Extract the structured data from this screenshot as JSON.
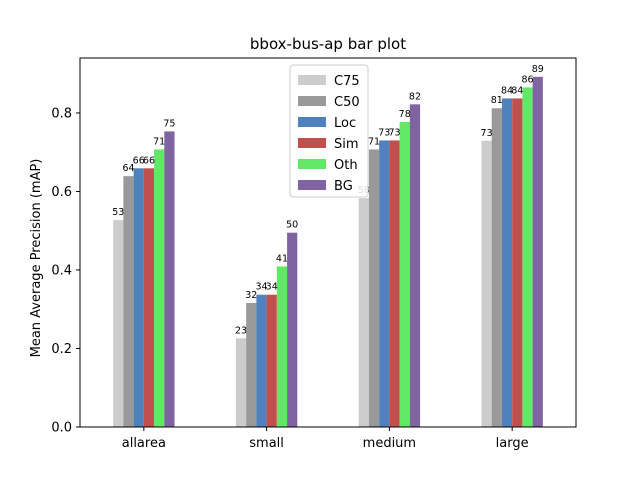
{
  "chart_data": {
    "type": "bar",
    "title": "bbox-bus-ap bar plot",
    "xlabel": "",
    "ylabel": "Mean Average Precision (mAP)",
    "ylim": [
      0,
      0.94
    ],
    "yticks": [
      0.0,
      0.2,
      0.4,
      0.6,
      0.8
    ],
    "ytick_labels": [
      "0.0",
      "0.2",
      "0.4",
      "0.6",
      "0.8"
    ],
    "categories": [
      "allarea",
      "small",
      "medium",
      "large"
    ],
    "legend_position": "top-center",
    "grid": false,
    "series": [
      {
        "name": "C75",
        "color": "#cccccc",
        "values": [
          0.527,
          0.226,
          0.583,
          0.729
        ],
        "labels": [
          "53",
          "23",
          "58",
          "73"
        ]
      },
      {
        "name": "C50",
        "color": "#999999",
        "values": [
          0.639,
          0.316,
          0.707,
          0.812
        ],
        "labels": [
          "64",
          "32",
          "71",
          "81"
        ]
      },
      {
        "name": "Loc",
        "color": "#4f81bd",
        "values": [
          0.659,
          0.337,
          0.73,
          0.837
        ],
        "labels": [
          "66",
          "34",
          "73",
          "84"
        ]
      },
      {
        "name": "Sim",
        "color": "#c0504d",
        "values": [
          0.659,
          0.337,
          0.73,
          0.837
        ],
        "labels": [
          "66",
          "34",
          "73",
          "84"
        ]
      },
      {
        "name": "Oth",
        "color": "#62e867",
        "values": [
          0.707,
          0.409,
          0.777,
          0.865
        ],
        "labels": [
          "71",
          "41",
          "78",
          "86"
        ]
      },
      {
        "name": "BG",
        "color": "#8064a2",
        "values": [
          0.753,
          0.495,
          0.822,
          0.892
        ],
        "labels": [
          "75",
          "50",
          "82",
          "89"
        ]
      }
    ]
  }
}
